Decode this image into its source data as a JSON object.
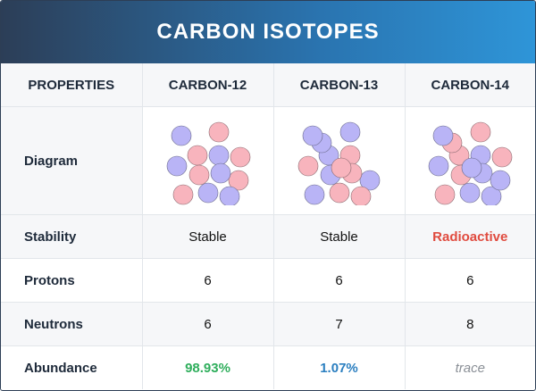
{
  "title": "CARBON ISOTOPES",
  "headers": [
    "PROPERTIES",
    "CARBON-12",
    "CARBON-13",
    "CARBON-14"
  ],
  "rows": {
    "diagram": {
      "label": "Diagram"
    },
    "stability": {
      "label": "Stability",
      "values": [
        "Stable",
        "Stable",
        "Radioactive"
      ]
    },
    "protons": {
      "label": "Protons",
      "values": [
        "6",
        "6",
        "6"
      ]
    },
    "neutrons": {
      "label": "Neutrons",
      "values": [
        "6",
        "7",
        "8"
      ]
    },
    "abundance": {
      "label": "Abundance",
      "values": [
        "98.93%",
        "1.07%",
        "trace"
      ]
    }
  },
  "colors": {
    "proton": "#f8b4bd",
    "neutron": "#b9b4f6",
    "radioactive": "#e04b3f",
    "abundance_c12": "#2fae5c",
    "abundance_c13": "#2b7fc0",
    "abundance_c14": "#8a8f96"
  },
  "nuclei": [
    {
      "isotope": "CARBON-12",
      "protons": 6,
      "neutrons": 6
    },
    {
      "isotope": "CARBON-13",
      "protons": 6,
      "neutrons": 7
    },
    {
      "isotope": "CARBON-14",
      "protons": 6,
      "neutrons": 8
    }
  ]
}
